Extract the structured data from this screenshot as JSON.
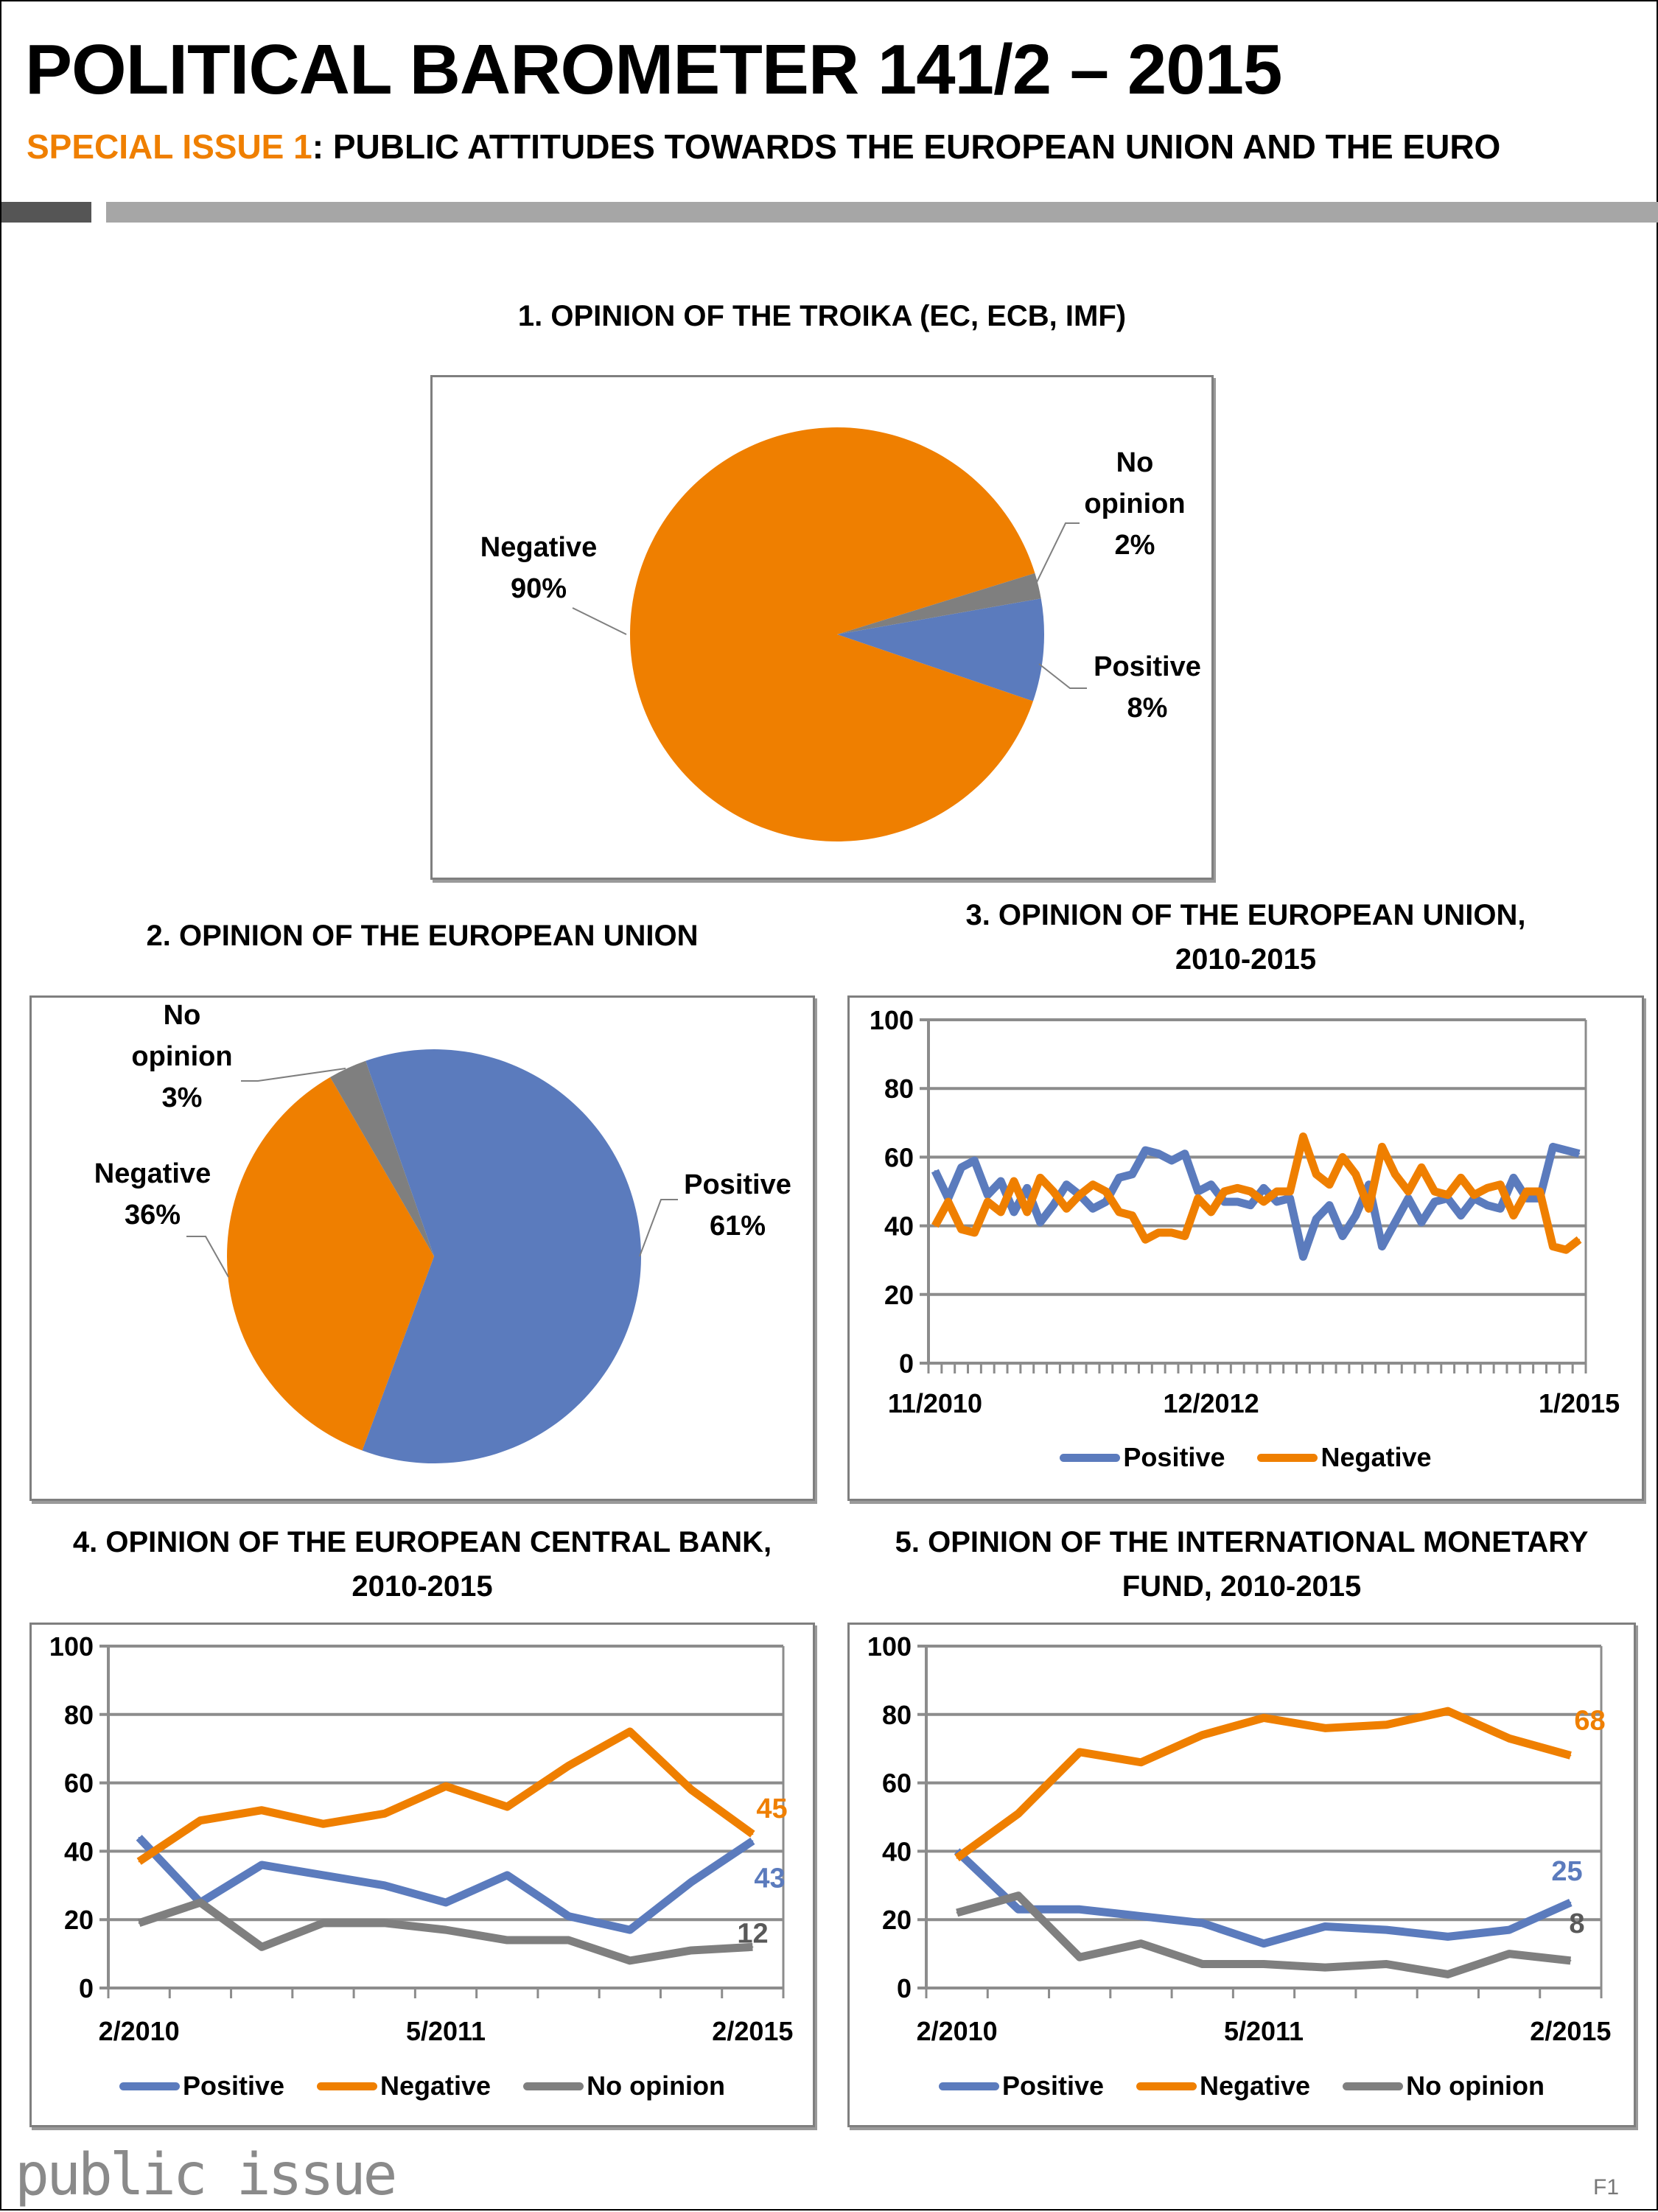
{
  "header": {
    "title": "POLITICAL BAROMETER 141/2 – 2015",
    "subtitle_accent": "SPECIAL ISSUE 1",
    "subtitle_rest": ": PUBLIC ATTITUDES TOWARDS THE EUROPEAN UNION AND THE EURO"
  },
  "colors": {
    "positive": "#5b7bbd",
    "negative": "#ef7f00",
    "no_opinion": "#7f7f7f",
    "accent": "#ef7f00"
  },
  "footer": {
    "logo": "public issue",
    "page": "F1"
  },
  "chart_data": [
    {
      "id": "c1",
      "type": "pie",
      "title": "1. OPINION OF THE TROIKA (EC, ECB, IMF)",
      "slices": [
        {
          "name": "Positive",
          "value": 8,
          "label": [
            "Positive",
            "8%"
          ]
        },
        {
          "name": "Negative",
          "value": 90,
          "label": [
            "Negative",
            "90%"
          ]
        },
        {
          "name": "No opinion",
          "value": 2,
          "label": [
            "No",
            "opinion",
            "2%"
          ]
        }
      ]
    },
    {
      "id": "c2",
      "type": "pie",
      "title": "2. OPINION OF THE EUROPEAN UNION",
      "slices": [
        {
          "name": "Positive",
          "value": 61,
          "label": [
            "Positive",
            "61%"
          ]
        },
        {
          "name": "Negative",
          "value": 36,
          "label": [
            "Negative",
            "36%"
          ]
        },
        {
          "name": "No opinion",
          "value": 3,
          "label": [
            "No",
            "opinion",
            "3%"
          ]
        }
      ]
    },
    {
      "id": "c3",
      "type": "line",
      "title": [
        "3. OPINION OF THE EUROPEAN UNION,",
        "2010-2015"
      ],
      "ylim": [
        0,
        100
      ],
      "yticks": [
        0,
        20,
        40,
        60,
        80,
        100
      ],
      "grid": true,
      "legend": "bottom",
      "x_labels": [
        {
          "index": 0,
          "text": "11/2010"
        },
        {
          "index": 21,
          "text": "12/2012"
        },
        {
          "index": 49,
          "text": "1/2015"
        }
      ],
      "series": [
        {
          "name": "Positive",
          "key": "positive",
          "values": [
            56,
            48,
            57,
            59,
            49,
            53,
            44,
            51,
            41,
            46,
            52,
            49,
            45,
            47,
            54,
            55,
            62,
            61,
            59,
            61,
            50,
            52,
            47,
            47,
            46,
            51,
            47,
            48,
            31,
            42,
            46,
            37,
            43,
            52,
            34,
            41,
            48,
            41,
            47,
            48,
            43,
            48,
            46,
            45,
            54,
            48,
            48,
            63,
            62,
            61
          ]
        },
        {
          "name": "Negative",
          "key": "negative",
          "values": [
            40,
            47,
            39,
            38,
            47,
            44,
            53,
            44,
            54,
            50,
            45,
            49,
            52,
            50,
            44,
            43,
            36,
            38,
            38,
            37,
            48,
            44,
            50,
            51,
            50,
            47,
            50,
            50,
            66,
            55,
            52,
            60,
            55,
            45,
            63,
            55,
            50,
            57,
            50,
            49,
            54,
            49,
            51,
            52,
            43,
            50,
            50,
            34,
            33,
            36
          ]
        }
      ]
    },
    {
      "id": "c4",
      "type": "line",
      "title": [
        "4. OPINION OF THE EUROPEAN CENTRAL BANK,",
        "2010-2015"
      ],
      "ylim": [
        0,
        100
      ],
      "yticks": [
        0,
        20,
        40,
        60,
        80,
        100
      ],
      "grid": true,
      "legend": "bottom",
      "x_labels": [
        {
          "index": 0,
          "text": "2/2010"
        },
        {
          "index": 5,
          "text": "5/2011"
        },
        {
          "index": 10,
          "text": "2/2015"
        }
      ],
      "series": [
        {
          "name": "Positive",
          "key": "positive",
          "values": [
            44,
            25,
            36,
            33,
            30,
            25,
            33,
            21,
            17,
            31,
            43
          ],
          "end_label": "43"
        },
        {
          "name": "Negative",
          "key": "negative",
          "values": [
            37,
            49,
            52,
            48,
            51,
            59,
            53,
            65,
            75,
            58,
            45
          ],
          "end_label": "45"
        },
        {
          "name": "No opinion",
          "key": "no_opinion",
          "values": [
            19,
            25,
            12,
            19,
            19,
            17,
            14,
            14,
            8,
            11,
            12
          ],
          "end_label": "12"
        }
      ]
    },
    {
      "id": "c5",
      "type": "line",
      "title": [
        "5. OPINION OF THE INTERNATIONAL MONETARY",
        "FUND, 2010-2015"
      ],
      "ylim": [
        0,
        100
      ],
      "yticks": [
        0,
        20,
        40,
        60,
        80,
        100
      ],
      "grid": true,
      "legend": "bottom",
      "x_labels": [
        {
          "index": 0,
          "text": "2/2010"
        },
        {
          "index": 5,
          "text": "5/2011"
        },
        {
          "index": 10,
          "text": "2/2015"
        }
      ],
      "series": [
        {
          "name": "Positive",
          "key": "positive",
          "values": [
            40,
            23,
            23,
            21,
            19,
            13,
            18,
            17,
            15,
            17,
            25
          ],
          "end_label": "25"
        },
        {
          "name": "Negative",
          "key": "negative",
          "values": [
            38,
            51,
            69,
            66,
            74,
            79,
            76,
            77,
            81,
            73,
            68
          ],
          "end_label": "68"
        },
        {
          "name": "No opinion",
          "key": "no_opinion",
          "values": [
            22,
            27,
            9,
            13,
            7,
            7,
            6,
            7,
            4,
            10,
            8
          ],
          "end_label": "8"
        }
      ]
    }
  ]
}
